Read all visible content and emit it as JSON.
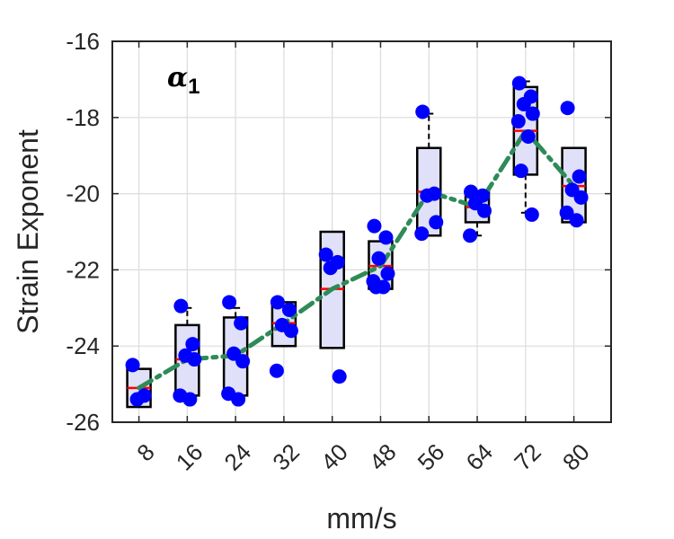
{
  "chart_data": {
    "type": "box",
    "xlabel": "mm/s",
    "ylabel": "Strain Exponent",
    "annotation": {
      "symbol": "α",
      "subscript": "1"
    },
    "categories": [
      "8",
      "16",
      "24",
      "32",
      "40",
      "48",
      "56",
      "64",
      "72",
      "80"
    ],
    "ylim": [
      -26,
      -16
    ],
    "yticks": [
      -26,
      -24,
      -22,
      -20,
      -18,
      -16
    ],
    "grid": true,
    "boxes": [
      {
        "q1": -25.6,
        "median": -25.1,
        "q3": -24.6,
        "whisker_low": -25.6,
        "whisker_high": -24.6
      },
      {
        "q1": -25.3,
        "median": -24.35,
        "q3": -23.45,
        "whisker_low": -25.3,
        "whisker_high": -23.0
      },
      {
        "q1": -25.3,
        "median": -24.25,
        "q3": -23.25,
        "whisker_low": -25.3,
        "whisker_high": -23.0
      },
      {
        "q1": -24.0,
        "median": -23.4,
        "q3": -22.85,
        "whisker_low": -24.0,
        "whisker_high": -22.85
      },
      {
        "q1": -24.05,
        "median": -22.5,
        "q3": -21.0,
        "whisker_low": -24.05,
        "whisker_high": -21.0
      },
      {
        "q1": -22.5,
        "median": -21.9,
        "q3": -21.25,
        "whisker_low": -22.5,
        "whisker_high": -21.25
      },
      {
        "q1": -21.1,
        "median": -19.95,
        "q3": -18.8,
        "whisker_low": -21.1,
        "whisker_high": -17.9
      },
      {
        "q1": -20.75,
        "median": -20.35,
        "q3": -19.95,
        "whisker_low": -21.1,
        "whisker_high": -19.95
      },
      {
        "q1": -19.5,
        "median": -18.35,
        "q3": -17.2,
        "whisker_low": -20.5,
        "whisker_high": -17.05
      },
      {
        "q1": -20.75,
        "median": -19.8,
        "q3": -18.8,
        "whisker_low": -20.75,
        "whisker_high": -18.8
      }
    ],
    "points": [
      [
        -24.5,
        -25.3,
        -25.4
      ],
      [
        -22.95,
        -23.95,
        -24.25,
        -24.35,
        -25.3,
        -25.4
      ],
      [
        -22.85,
        -23.4,
        -24.2,
        -24.4,
        -25.25,
        -25.4
      ],
      [
        -22.85,
        -23.05,
        -23.45,
        -23.6,
        -24.65
      ],
      [
        -21.6,
        -21.8,
        -21.95,
        -24.8
      ],
      [
        -20.85,
        -21.15,
        -21.7,
        -22.1,
        -22.3,
        -22.45,
        -22.45
      ],
      [
        -17.85,
        -20.0,
        -20.05,
        -20.75,
        -21.05
      ],
      [
        -19.95,
        -20.05,
        -20.25,
        -20.45,
        -21.1
      ],
      [
        -17.1,
        -17.45,
        -17.65,
        -17.9,
        -18.1,
        -18.5,
        -19.4,
        -20.55
      ],
      [
        -17.75,
        -19.55,
        -19.9,
        -20.1,
        -20.5,
        -20.7
      ]
    ],
    "trend": [
      -25.1,
      -24.35,
      -24.25,
      -23.4,
      -22.5,
      -21.9,
      -19.95,
      -20.35,
      -18.35,
      -19.8
    ],
    "colors": {
      "box_fill": "#e0e0f8",
      "box_stroke": "#000000",
      "median": "#ff0000",
      "points": "#0000ff",
      "trend": "#2e8b57",
      "grid": "#dcdcdc",
      "axis": "#262626"
    }
  }
}
